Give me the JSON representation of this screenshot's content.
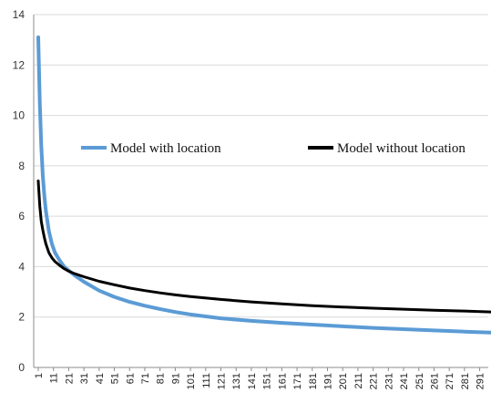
{
  "chart_data": {
    "type": "line",
    "title": "",
    "xlabel": "",
    "ylabel": "",
    "ylim": [
      0,
      14
    ],
    "xlim": [
      1,
      300
    ],
    "yticks": [
      0,
      2,
      4,
      6,
      8,
      10,
      12,
      14
    ],
    "xticks": [
      1,
      11,
      21,
      31,
      41,
      51,
      61,
      71,
      81,
      91,
      101,
      111,
      121,
      131,
      141,
      151,
      161,
      171,
      181,
      191,
      201,
      211,
      221,
      231,
      241,
      251,
      261,
      271,
      281,
      291
    ],
    "grid": "horizontal",
    "legend_position": "upper-center",
    "series": [
      {
        "name": "Model with location",
        "color": "#5b9bd5",
        "x": [
          1,
          2,
          3,
          4,
          5,
          6,
          8,
          10,
          12,
          15,
          18,
          21,
          25,
          31,
          41,
          51,
          61,
          71,
          81,
          91,
          101,
          121,
          141,
          161,
          181,
          201,
          221,
          241,
          261,
          281,
          300
        ],
        "y": [
          13.1,
          10.5,
          8.8,
          7.6,
          6.8,
          6.2,
          5.4,
          4.9,
          4.55,
          4.25,
          4.0,
          3.85,
          3.65,
          3.4,
          3.05,
          2.8,
          2.6,
          2.45,
          2.32,
          2.2,
          2.1,
          1.95,
          1.85,
          1.77,
          1.7,
          1.63,
          1.57,
          1.52,
          1.47,
          1.42,
          1.38
        ]
      },
      {
        "name": "Model without location",
        "color": "#000000",
        "x": [
          1,
          2,
          3,
          4,
          5,
          6,
          8,
          10,
          12,
          15,
          18,
          21,
          25,
          31,
          41,
          51,
          61,
          71,
          81,
          91,
          101,
          121,
          141,
          161,
          181,
          201,
          221,
          241,
          261,
          281,
          300
        ],
        "y": [
          7.4,
          6.4,
          5.8,
          5.45,
          5.15,
          4.9,
          4.55,
          4.35,
          4.2,
          4.05,
          3.92,
          3.82,
          3.72,
          3.6,
          3.42,
          3.28,
          3.15,
          3.05,
          2.96,
          2.88,
          2.81,
          2.7,
          2.6,
          2.52,
          2.45,
          2.4,
          2.35,
          2.31,
          2.27,
          2.24,
          2.2
        ]
      }
    ]
  }
}
